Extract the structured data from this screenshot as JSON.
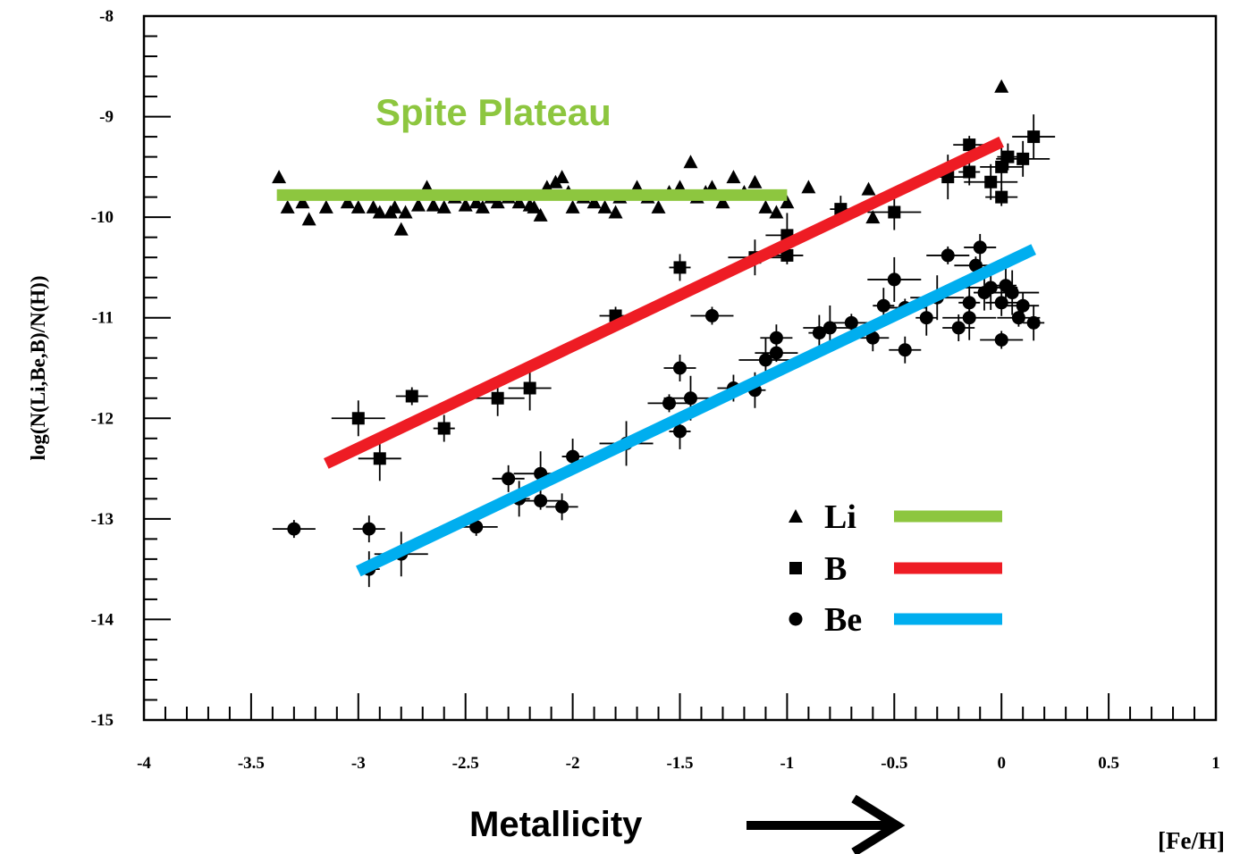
{
  "chart_data": {
    "type": "scatter",
    "title": "",
    "xlabel": "[Fe/H]",
    "ylabel": "log(N(Li,Be,B)/N(H))",
    "xlim": [
      -4,
      1
    ],
    "ylim": [
      -15,
      -8
    ],
    "x_ticks": [
      "-4",
      "-3.5",
      "-3",
      "-2.5",
      "-2",
      "-1.5",
      "-1",
      "-0.5",
      "0",
      "0.5",
      "1"
    ],
    "y_ticks": [
      "-8",
      "-9",
      "-10",
      "-11",
      "-12",
      "-13",
      "-14",
      "-15"
    ],
    "legend_position": "lower-right",
    "annotations": {
      "plateau": "Spite Plateau",
      "metallicity": "Metallicity"
    },
    "series": [
      {
        "name": "Li",
        "marker": "triangle",
        "points": [
          [
            -3.37,
            -9.6
          ],
          [
            -3.33,
            -9.9
          ],
          [
            -3.26,
            -9.85
          ],
          [
            -3.23,
            -10.02
          ],
          [
            -3.15,
            -9.9
          ],
          [
            -3.05,
            -9.85
          ],
          [
            -3.0,
            -9.9
          ],
          [
            -2.93,
            -9.9
          ],
          [
            -2.9,
            -9.95
          ],
          [
            -2.85,
            -9.95
          ],
          [
            -2.83,
            -9.9
          ],
          [
            -2.8,
            -10.12
          ],
          [
            -2.78,
            -9.95
          ],
          [
            -2.72,
            -9.88
          ],
          [
            -2.68,
            -9.7
          ],
          [
            -2.65,
            -9.88
          ],
          [
            -2.6,
            -9.9
          ],
          [
            -2.55,
            -9.8
          ],
          [
            -2.5,
            -9.88
          ],
          [
            -2.45,
            -9.85
          ],
          [
            -2.42,
            -9.9
          ],
          [
            -2.38,
            -9.8
          ],
          [
            -2.35,
            -9.85
          ],
          [
            -2.3,
            -9.8
          ],
          [
            -2.25,
            -9.85
          ],
          [
            -2.2,
            -9.88
          ],
          [
            -2.18,
            -9.9
          ],
          [
            -2.15,
            -9.98
          ],
          [
            -2.12,
            -9.7
          ],
          [
            -2.08,
            -9.65
          ],
          [
            -2.05,
            -9.6
          ],
          [
            -2.02,
            -9.75
          ],
          [
            -2.0,
            -9.9
          ],
          [
            -1.95,
            -9.8
          ],
          [
            -1.9,
            -9.85
          ],
          [
            -1.85,
            -9.9
          ],
          [
            -1.8,
            -9.95
          ],
          [
            -1.78,
            -9.8
          ],
          [
            -1.7,
            -9.7
          ],
          [
            -1.65,
            -9.8
          ],
          [
            -1.6,
            -9.9
          ],
          [
            -1.55,
            -9.75
          ],
          [
            -1.5,
            -9.7
          ],
          [
            -1.45,
            -9.45
          ],
          [
            -1.42,
            -9.8
          ],
          [
            -1.38,
            -9.75
          ],
          [
            -1.35,
            -9.7
          ],
          [
            -1.3,
            -9.85
          ],
          [
            -1.25,
            -9.6
          ],
          [
            -1.2,
            -9.75
          ],
          [
            -1.15,
            -9.65
          ],
          [
            -1.1,
            -9.9
          ],
          [
            -1.05,
            -9.95
          ],
          [
            -1.0,
            -9.85
          ],
          [
            -0.9,
            -9.7
          ],
          [
            -0.62,
            -9.72
          ],
          [
            -0.6,
            -10.0
          ],
          [
            0.0,
            -8.7
          ]
        ]
      },
      {
        "name": "B",
        "marker": "square",
        "points": [
          [
            -3.0,
            -12.0
          ],
          [
            -2.9,
            -12.4
          ],
          [
            -2.75,
            -11.78
          ],
          [
            -2.6,
            -12.1
          ],
          [
            -2.35,
            -11.8
          ],
          [
            -2.2,
            -11.7
          ],
          [
            -1.8,
            -10.98
          ],
          [
            -1.5,
            -10.5
          ],
          [
            -1.15,
            -10.4
          ],
          [
            -1.0,
            -10.18
          ],
          [
            -1.0,
            -10.38
          ],
          [
            -0.75,
            -9.92
          ],
          [
            -0.5,
            -9.95
          ],
          [
            -0.25,
            -9.6
          ],
          [
            -0.15,
            -9.28
          ],
          [
            -0.15,
            -9.55
          ],
          [
            -0.05,
            -9.65
          ],
          [
            0.0,
            -9.5
          ],
          [
            0.0,
            -9.8
          ],
          [
            0.03,
            -9.4
          ],
          [
            0.1,
            -9.42
          ],
          [
            0.15,
            -9.2
          ]
        ]
      },
      {
        "name": "Be",
        "marker": "circle",
        "points": [
          [
            -3.3,
            -13.1
          ],
          [
            -2.95,
            -13.1
          ],
          [
            -2.95,
            -13.5
          ],
          [
            -2.8,
            -13.35
          ],
          [
            -2.45,
            -13.08
          ],
          [
            -2.3,
            -12.6
          ],
          [
            -2.25,
            -12.8
          ],
          [
            -2.15,
            -12.55
          ],
          [
            -2.15,
            -12.82
          ],
          [
            -2.05,
            -12.88
          ],
          [
            -2.0,
            -12.38
          ],
          [
            -1.75,
            -12.25
          ],
          [
            -1.55,
            -11.85
          ],
          [
            -1.5,
            -11.5
          ],
          [
            -1.5,
            -12.13
          ],
          [
            -1.45,
            -11.8
          ],
          [
            -1.35,
            -10.98
          ],
          [
            -1.25,
            -11.7
          ],
          [
            -1.15,
            -11.72
          ],
          [
            -1.1,
            -11.42
          ],
          [
            -1.05,
            -11.35
          ],
          [
            -1.05,
            -11.2
          ],
          [
            -0.85,
            -11.15
          ],
          [
            -0.8,
            -11.1
          ],
          [
            -0.7,
            -11.05
          ],
          [
            -0.6,
            -11.2
          ],
          [
            -0.55,
            -10.88
          ],
          [
            -0.5,
            -10.62
          ],
          [
            -0.45,
            -10.9
          ],
          [
            -0.45,
            -11.32
          ],
          [
            -0.35,
            -11.0
          ],
          [
            -0.3,
            -10.8
          ],
          [
            -0.25,
            -10.38
          ],
          [
            -0.2,
            -11.1
          ],
          [
            -0.15,
            -10.85
          ],
          [
            -0.15,
            -11.0
          ],
          [
            -0.12,
            -10.48
          ],
          [
            -0.1,
            -10.3
          ],
          [
            -0.08,
            -10.75
          ],
          [
            -0.05,
            -10.7
          ],
          [
            0.0,
            -11.22
          ],
          [
            0.0,
            -10.85
          ],
          [
            0.02,
            -10.68
          ],
          [
            0.05,
            -10.75
          ],
          [
            0.08,
            -11.0
          ],
          [
            0.1,
            -10.88
          ],
          [
            0.15,
            -11.05
          ]
        ]
      }
    ],
    "fit_lines": [
      {
        "name": "Li",
        "color": "#8dc63f",
        "x": [
          -3.38,
          -1.0
        ],
        "y": [
          -9.78,
          -9.78
        ]
      },
      {
        "name": "B",
        "color": "#ee1c24",
        "x": [
          -3.15,
          0.0
        ],
        "y": [
          -12.45,
          -9.25
        ]
      },
      {
        "name": "Be",
        "color": "#00aeef",
        "x": [
          -3.0,
          0.15
        ],
        "y": [
          -13.52,
          -10.32
        ]
      }
    ]
  }
}
